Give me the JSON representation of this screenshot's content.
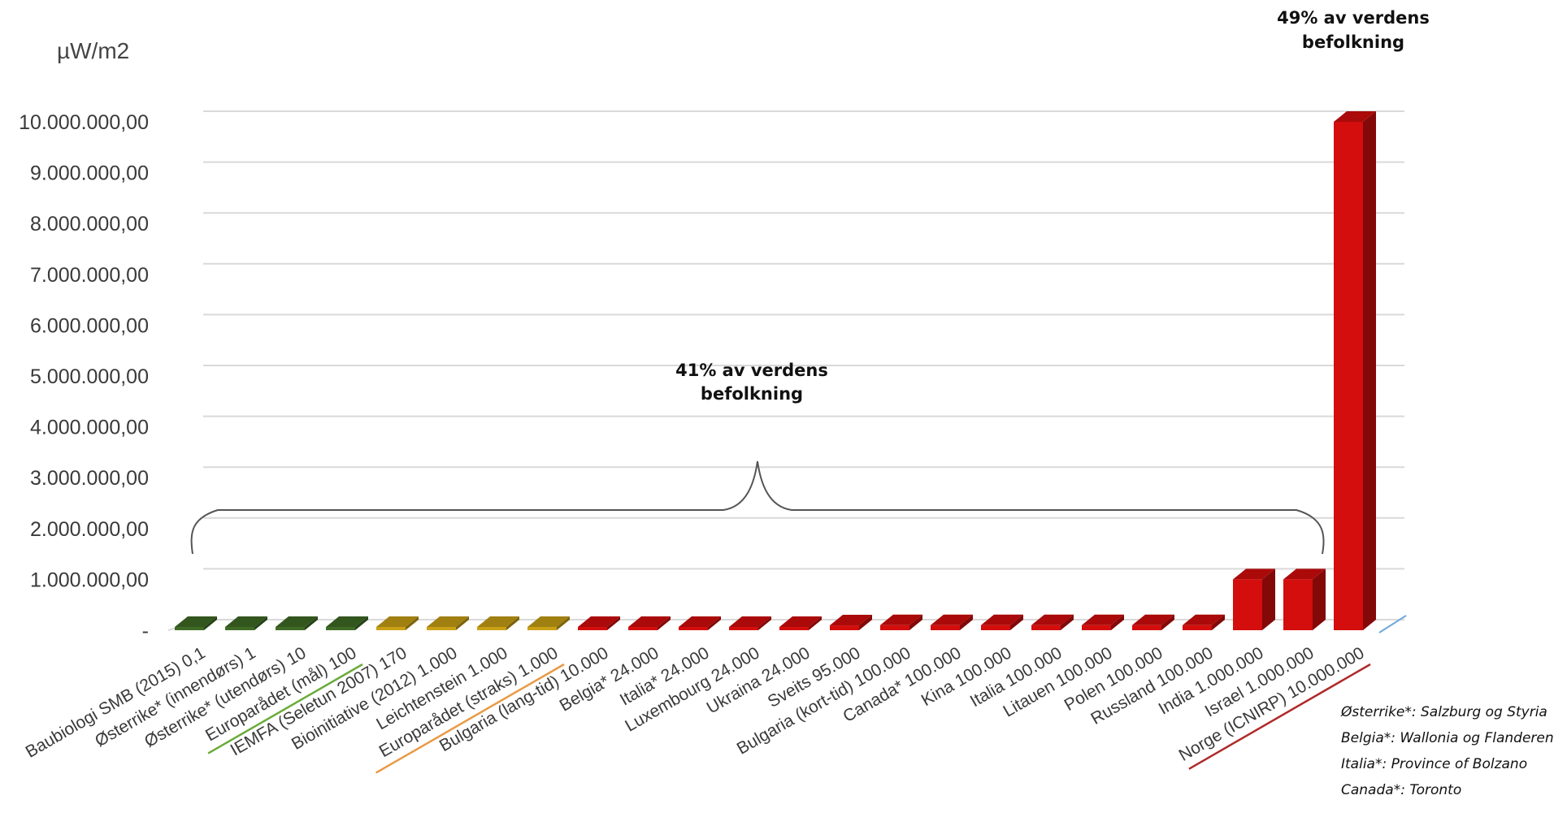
{
  "chart_data": {
    "type": "bar",
    "ylabel": "µW/m2",
    "ylim": [
      0,
      10000000
    ],
    "yticks": [
      "-",
      "1.000.000,00",
      "2.000.000,00",
      "3.000.000,00",
      "4.000.000,00",
      "5.000.000,00",
      "6.000.000,00",
      "7.000.000,00",
      "8.000.000,00",
      "9.000.000,00",
      "10.000.000,00"
    ],
    "grid": true,
    "style": "3d-columns",
    "categories": [
      "Baubiologi SMB (2015)  0,1",
      "Østerrike* (innendørs)  1",
      "Østerrike* (utendørs)  10",
      "Europarådet (mål)  100",
      "IEMFA (Seletun 2007)  170",
      "Bioinitiative (2012)  1.000",
      "Leichtenstein  1.000",
      "Europarådet (straks)  1.000",
      "Bulgaria (lang-tid)  10.000",
      "Belgia*  24.000",
      "Italia*  24.000",
      "Luxembourg  24.000",
      "Ukraina  24.000",
      "Sveits  95.000",
      "Bulgaria (kort-tid)  100.000",
      "Canada*  100.000",
      "Kina  100.000",
      "Italia  100.000",
      "Litauen  100.000",
      "Polen  100.000",
      "Russland  100.000",
      "India  1.000.000",
      "Israel  1.000.000",
      "Norge (ICNIRP)  10.000.000"
    ],
    "values": [
      0.1,
      1,
      10,
      100,
      170,
      1000,
      1000,
      1000,
      10000,
      24000,
      24000,
      24000,
      24000,
      95000,
      100000,
      100000,
      100000,
      100000,
      100000,
      100000,
      100000,
      1000000,
      1000000,
      10000000
    ],
    "bar_colors": [
      "#3f6b26",
      "#3f6b26",
      "#3f6b26",
      "#3f6b26",
      "#c9a016",
      "#c9a016",
      "#c9a016",
      "#c9a016",
      "#d40d0d",
      "#d40d0d",
      "#d40d0d",
      "#d40d0d",
      "#d40d0d",
      "#d40d0d",
      "#d40d0d",
      "#d40d0d",
      "#d40d0d",
      "#d40d0d",
      "#d40d0d",
      "#d40d0d",
      "#d40d0d",
      "#d40d0d",
      "#d40d0d",
      "#d40d0d"
    ],
    "underlines": [
      {
        "category_index": 3,
        "color": "#6aab3a"
      },
      {
        "category_index": 7,
        "color": "#e99a45"
      },
      {
        "category_index": 23,
        "color": "#b02a2a"
      }
    ],
    "annotations": {
      "brace_label": [
        "41% av verdens",
        "befolkning"
      ],
      "top_label": [
        "49% av verdens",
        "befolkning"
      ],
      "footnotes": [
        "Østerrike*: Salzburg og Styria",
        "Belgia*: Wallonia og Flanderen",
        "Italia*: Province of Bolzano",
        "Canada*: Toronto"
      ]
    }
  }
}
